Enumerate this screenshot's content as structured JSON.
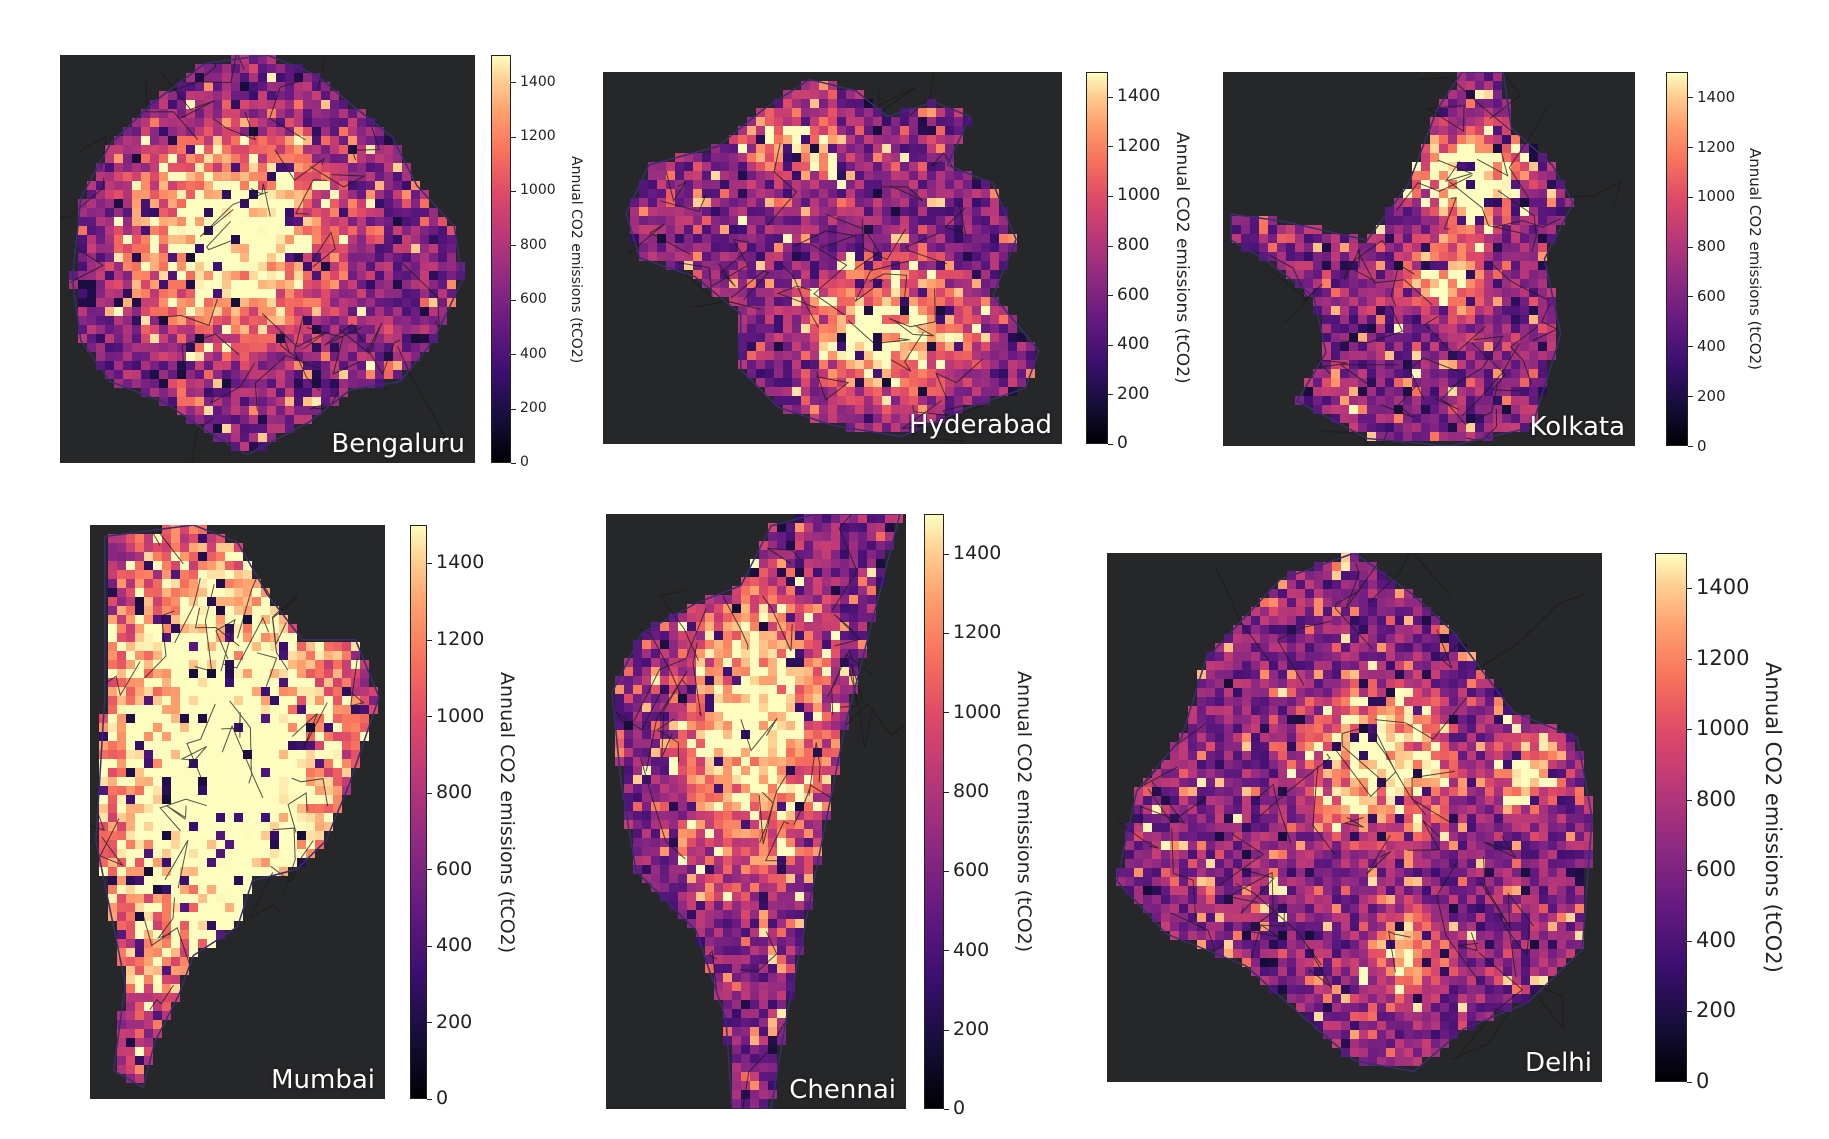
{
  "chart_data": [
    {
      "type": "heatmap",
      "title": "Bengaluru",
      "colorbar": {
        "label": "Annual CO2 emissions (tCO2)",
        "ticks": [
          0,
          200,
          400,
          600,
          800,
          1000,
          1200,
          1400
        ],
        "range": [
          0,
          1500
        ],
        "colormap": "magma"
      }
    },
    {
      "type": "heatmap",
      "title": "Hyderabad",
      "colorbar": {
        "label": "Annual CO2 emissions (tCO2)",
        "ticks": [
          0,
          200,
          400,
          600,
          800,
          1000,
          1200,
          1400
        ],
        "range": [
          0,
          1500
        ],
        "colormap": "magma"
      }
    },
    {
      "type": "heatmap",
      "title": "Kolkata",
      "colorbar": {
        "label": "Annual CO2 emissions (tCO2)",
        "ticks": [
          0,
          200,
          400,
          600,
          800,
          1000,
          1200,
          1400
        ],
        "range": [
          0,
          1500
        ],
        "colormap": "magma"
      }
    },
    {
      "type": "heatmap",
      "title": "Mumbai",
      "colorbar": {
        "label": "Annual CO2 emissions (tCO2)",
        "ticks": [
          0,
          200,
          400,
          600,
          800,
          1000,
          1200,
          1400
        ],
        "range": [
          0,
          1500
        ],
        "colormap": "magma"
      }
    },
    {
      "type": "heatmap",
      "title": "Chennai",
      "colorbar": {
        "label": "Annual CO2 emissions (tCO2)",
        "ticks": [
          0,
          200,
          400,
          600,
          800,
          1000,
          1200,
          1400
        ],
        "range": [
          0,
          1500
        ],
        "colormap": "magma"
      }
    },
    {
      "type": "heatmap",
      "title": "Delhi",
      "colorbar": {
        "label": "Annual CO2 emissions (tCO2)",
        "ticks": [
          0,
          200,
          400,
          600,
          800,
          1000,
          1200,
          1400
        ],
        "range": [
          0,
          1500
        ],
        "colormap": "magma"
      }
    }
  ]
}
